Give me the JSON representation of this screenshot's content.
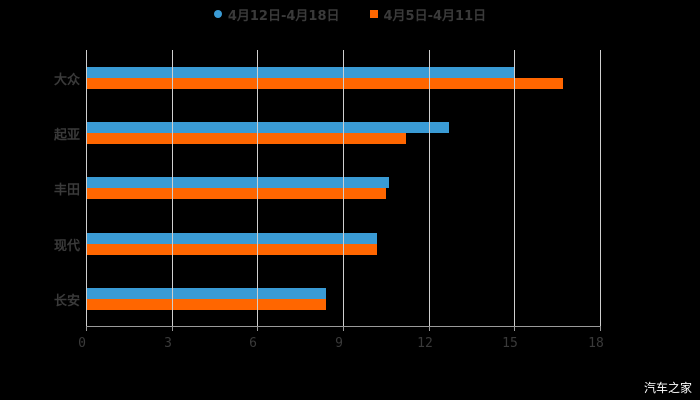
{
  "chart_data": {
    "type": "bar",
    "orientation": "horizontal",
    "title": "",
    "categories": [
      "大众",
      "起亚",
      "丰田",
      "现代",
      "长安"
    ],
    "series": [
      {
        "name": "4月12日-4月18日",
        "color": "#3a9bd5",
        "marker": "circle",
        "values": [
          15.0,
          12.7,
          10.6,
          10.2,
          8.4
        ]
      },
      {
        "name": "4月5日-4月11日",
        "color": "#ff6600",
        "marker": "square",
        "values": [
          16.7,
          11.2,
          10.5,
          10.2,
          8.4
        ]
      }
    ],
    "xlabel": "",
    "ylabel": "",
    "xlim": [
      0,
      18
    ],
    "x_ticks": [
      "0",
      "3",
      "6",
      "9",
      "12",
      "15",
      "18"
    ],
    "grid": true,
    "legend_position": "top"
  },
  "legend": {
    "items": [
      {
        "label": "4月12日-4月18日",
        "color": "#3a9bd5"
      },
      {
        "label": "4月5日-4月11日",
        "color": "#ff6600"
      }
    ]
  },
  "watermark": "汽车之家"
}
